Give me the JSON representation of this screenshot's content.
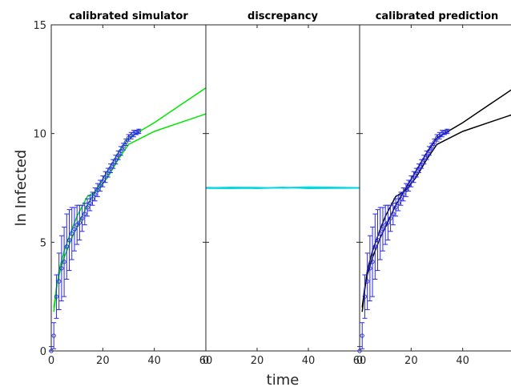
{
  "chart_data": [
    {
      "type": "line",
      "title": "calibrated simulator",
      "ylabel": "ln Infected",
      "xlabel": "",
      "xlim": [
        0,
        60
      ],
      "ylim": [
        0,
        15
      ],
      "x_ticks": [
        0,
        20,
        40,
        60
      ],
      "y_ticks": [
        0,
        5,
        10,
        15
      ],
      "series": [
        {
          "color": "#00e600",
          "x": [
            1,
            2,
            3,
            5,
            8,
            10,
            14,
            18,
            22,
            26,
            30,
            40,
            50,
            60
          ],
          "values": [
            2.0,
            2.9,
            3.5,
            4.3,
            5.2,
            5.7,
            6.7,
            7.5,
            8.3,
            9.1,
            9.8,
            10.5,
            11.3,
            12.1
          ]
        },
        {
          "color": "#00e600",
          "x": [
            1,
            2,
            3,
            5,
            8,
            10,
            14,
            18,
            22,
            26,
            30,
            40,
            50,
            60
          ],
          "values": [
            1.8,
            2.8,
            3.7,
            4.6,
            5.6,
            6.2,
            7.1,
            7.4,
            8.0,
            8.8,
            9.5,
            10.1,
            10.5,
            10.9
          ]
        }
      ],
      "observations": {
        "color": "#2a2ae6",
        "x": [
          0,
          1,
          2,
          3,
          4,
          5,
          6,
          7,
          8,
          9,
          10,
          11,
          12,
          13,
          14,
          15,
          16,
          17,
          18,
          19,
          20,
          21,
          22,
          23,
          24,
          25,
          26,
          27,
          28,
          29,
          30,
          31,
          32,
          33,
          34
        ],
        "values": [
          0,
          0.7,
          2.5,
          3.2,
          3.8,
          4.1,
          4.8,
          5.1,
          5.4,
          5.6,
          5.8,
          5.9,
          6.1,
          6.3,
          6.6,
          6.8,
          7.0,
          7.2,
          7.4,
          7.6,
          7.8,
          8.0,
          8.2,
          8.4,
          8.6,
          8.8,
          9.0,
          9.2,
          9.4,
          9.6,
          9.8,
          9.9,
          10.0,
          10.05,
          10.1
        ],
        "errors": [
          0.2,
          0.6,
          1.0,
          1.3,
          1.5,
          1.6,
          1.5,
          1.4,
          1.2,
          1.0,
          0.9,
          0.8,
          0.6,
          0.5,
          0.4,
          0.35,
          0.3,
          0.3,
          0.3,
          0.25,
          0.25,
          0.25,
          0.2,
          0.2,
          0.2,
          0.2,
          0.2,
          0.2,
          0.15,
          0.15,
          0.15,
          0.15,
          0.15,
          0.1,
          0.1
        ]
      }
    },
    {
      "type": "line",
      "title": "discrepancy",
      "xlabel": "time",
      "xlim": [
        0,
        60
      ],
      "ylim": [
        0,
        15
      ],
      "x_ticks": [
        0,
        20,
        40,
        60
      ],
      "series": [
        {
          "color": "#00d8e6",
          "x": [
            0,
            10,
            20,
            30,
            40,
            60
          ],
          "values": [
            7.5,
            7.53,
            7.52,
            7.49,
            7.51,
            7.5
          ]
        },
        {
          "color": "#00d8e6",
          "x": [
            0,
            10,
            20,
            30,
            40,
            60
          ],
          "values": [
            7.48,
            7.47,
            7.49,
            7.53,
            7.47,
            7.49
          ]
        },
        {
          "color": "#00d8e6",
          "x": [
            0,
            10,
            20,
            30,
            40,
            60
          ],
          "values": [
            7.52,
            7.5,
            7.47,
            7.51,
            7.54,
            7.51
          ]
        }
      ]
    },
    {
      "type": "line",
      "title": "calibrated prediction",
      "xlabel": "",
      "xlim": [
        0,
        60
      ],
      "ylim": [
        0,
        15
      ],
      "x_ticks": [
        0,
        20,
        40
      ],
      "series": [
        {
          "color": "#000000",
          "x": [
            1,
            2,
            3,
            5,
            8,
            10,
            14,
            18,
            22,
            26,
            30,
            40,
            50,
            60
          ],
          "values": [
            2.0,
            2.9,
            3.5,
            4.3,
            5.2,
            5.7,
            6.7,
            7.5,
            8.3,
            9.1,
            9.8,
            10.5,
            11.3,
            12.1
          ]
        },
        {
          "color": "#000000",
          "x": [
            1,
            2,
            3,
            5,
            8,
            10,
            14,
            18,
            22,
            26,
            30,
            40,
            50,
            60
          ],
          "values": [
            1.8,
            2.8,
            3.7,
            4.6,
            5.6,
            6.2,
            7.1,
            7.4,
            8.0,
            8.8,
            9.5,
            10.1,
            10.5,
            10.9
          ]
        }
      ],
      "observations": {
        "color": "#2a2ae6",
        "x": [
          0,
          1,
          2,
          3,
          4,
          5,
          6,
          7,
          8,
          9,
          10,
          11,
          12,
          13,
          14,
          15,
          16,
          17,
          18,
          19,
          20,
          21,
          22,
          23,
          24,
          25,
          26,
          27,
          28,
          29,
          30,
          31,
          32,
          33,
          34
        ],
        "values": [
          0,
          0.7,
          2.5,
          3.2,
          3.8,
          4.1,
          4.8,
          5.1,
          5.4,
          5.6,
          5.8,
          5.9,
          6.1,
          6.3,
          6.6,
          6.8,
          7.0,
          7.2,
          7.4,
          7.6,
          7.8,
          8.0,
          8.2,
          8.4,
          8.6,
          8.8,
          9.0,
          9.2,
          9.4,
          9.6,
          9.8,
          9.9,
          10.0,
          10.05,
          10.1
        ],
        "errors": [
          0.2,
          0.6,
          1.0,
          1.3,
          1.5,
          1.6,
          1.5,
          1.4,
          1.2,
          1.0,
          0.9,
          0.8,
          0.6,
          0.5,
          0.4,
          0.35,
          0.3,
          0.3,
          0.3,
          0.25,
          0.25,
          0.25,
          0.2,
          0.2,
          0.2,
          0.2,
          0.2,
          0.2,
          0.15,
          0.15,
          0.15,
          0.15,
          0.15,
          0.1,
          0.1
        ]
      }
    }
  ]
}
